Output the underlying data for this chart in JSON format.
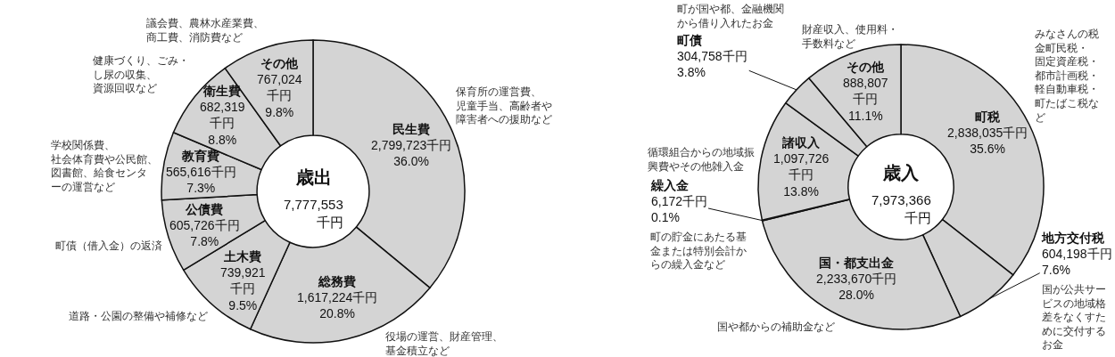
{
  "chart_data": [
    {
      "type": "donut",
      "title": "歳出",
      "subtitle": "7,777,553\n千円",
      "categories": [
        "民生費",
        "総務費",
        "土木費",
        "公債費",
        "教育費",
        "衛生費",
        "その他"
      ],
      "values": [
        2799723,
        1617224,
        739921,
        605726,
        565616,
        682319,
        767024
      ],
      "colors": [
        "#d4d4d4",
        "#d4d4d4",
        "#d4d4d4",
        "#d4d4d4",
        "#d4d4d4",
        "#d4d4d4",
        "#d4d4d4"
      ],
      "value_labels": [
        "2,799,723千円\n36.0%",
        "1,617,224千円\n20.8%",
        "739,921\n千円\n9.5%",
        "605,726千円\n7.8%",
        "565,616千円\n7.3%",
        "682,319\n千円\n8.8%",
        "767,024\n千円\n9.8%"
      ],
      "annotations": [
        "保育所の運営費、児童手当、高齢者や障害者への援助など",
        "役場の運営、財産管理、基金積立など",
        "道路・公園の整備や補修など",
        "町債（借入金）の返済",
        "学校関係費、社会体育費や公民館、図書館、給食センターの運営など",
        "健康づくり、ごみ・し尿の収集、資源回収など",
        "議会費、農林水産業費、商工費、消防費など"
      ]
    },
    {
      "type": "donut",
      "title": "歳入",
      "subtitle": "7,973,366\n千円",
      "categories": [
        "町税",
        "地方交付税",
        "国・都支出金",
        "繰入金",
        "諸収入",
        "町債",
        "その他"
      ],
      "values": [
        2838035,
        604198,
        2233670,
        6172,
        1097726,
        304758,
        888807
      ],
      "colors": [
        "#d4d4d4",
        "#d4d4d4",
        "#d4d4d4",
        "#d4d4d4",
        "#d4d4d4",
        "#d4d4d4",
        "#d4d4d4"
      ],
      "value_labels": [
        "2,838,035千円\n35.6%",
        "604,198千円\n7.6%",
        "2,233,670千円\n28.0%",
        "6,172千円\n0.1%",
        "1,097,726\n千円\n13.8%",
        "304,758千円\n3.8%",
        "888,807\n千円\n11.1%"
      ],
      "annotations": [
        "みなさんの税金町民税・固定資産税・都市計画税・軽自動車税・町たばこ税など",
        "国が公共サービスの地域格差をなくすために交付するお金",
        "国や都からの補助金など",
        "町の貯金にあたる基金または特別会計からの繰入金など",
        "循環組合からの地域振興費やその他雑入金",
        "町が国や都、金融機関から借り入れたお金",
        "財産収入、使用料・手数料など"
      ]
    }
  ]
}
